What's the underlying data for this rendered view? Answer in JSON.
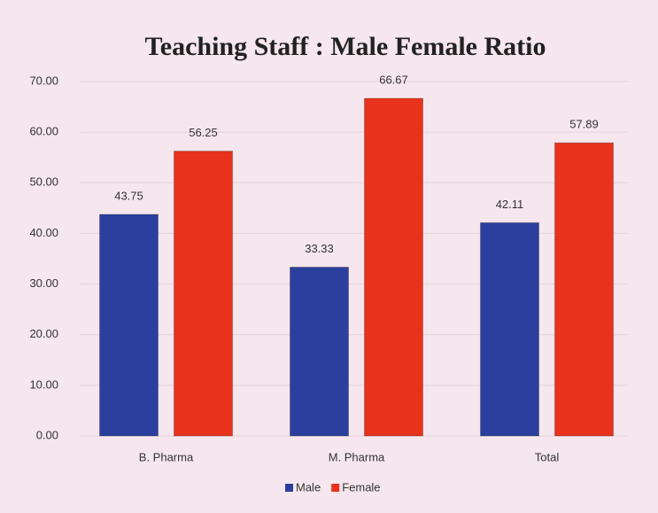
{
  "chart_data": {
    "type": "bar",
    "title": "Teaching  Staff : Male  Female Ratio",
    "categories": [
      "B. Pharma",
      "M. Pharma",
      "Total"
    ],
    "series": [
      {
        "name": "Male",
        "color": "#2b3f9e",
        "values": [
          43.75,
          33.33,
          42.11
        ]
      },
      {
        "name": "Female",
        "color": "#e8321c",
        "values": [
          56.25,
          66.67,
          57.89
        ]
      }
    ],
    "ylim": [
      0,
      70
    ],
    "yticks": [
      {
        "value": 0,
        "label": "0.00"
      },
      {
        "value": 10,
        "label": "10.00"
      },
      {
        "value": 20,
        "label": "20.00"
      },
      {
        "value": 30,
        "label": "30.00"
      },
      {
        "value": 40,
        "label": "40.00"
      },
      {
        "value": 50,
        "label": "50.00"
      },
      {
        "value": 60,
        "label": "60.00"
      },
      {
        "value": 70,
        "label": "70.00"
      }
    ],
    "grid": true,
    "legend": "bottom"
  }
}
